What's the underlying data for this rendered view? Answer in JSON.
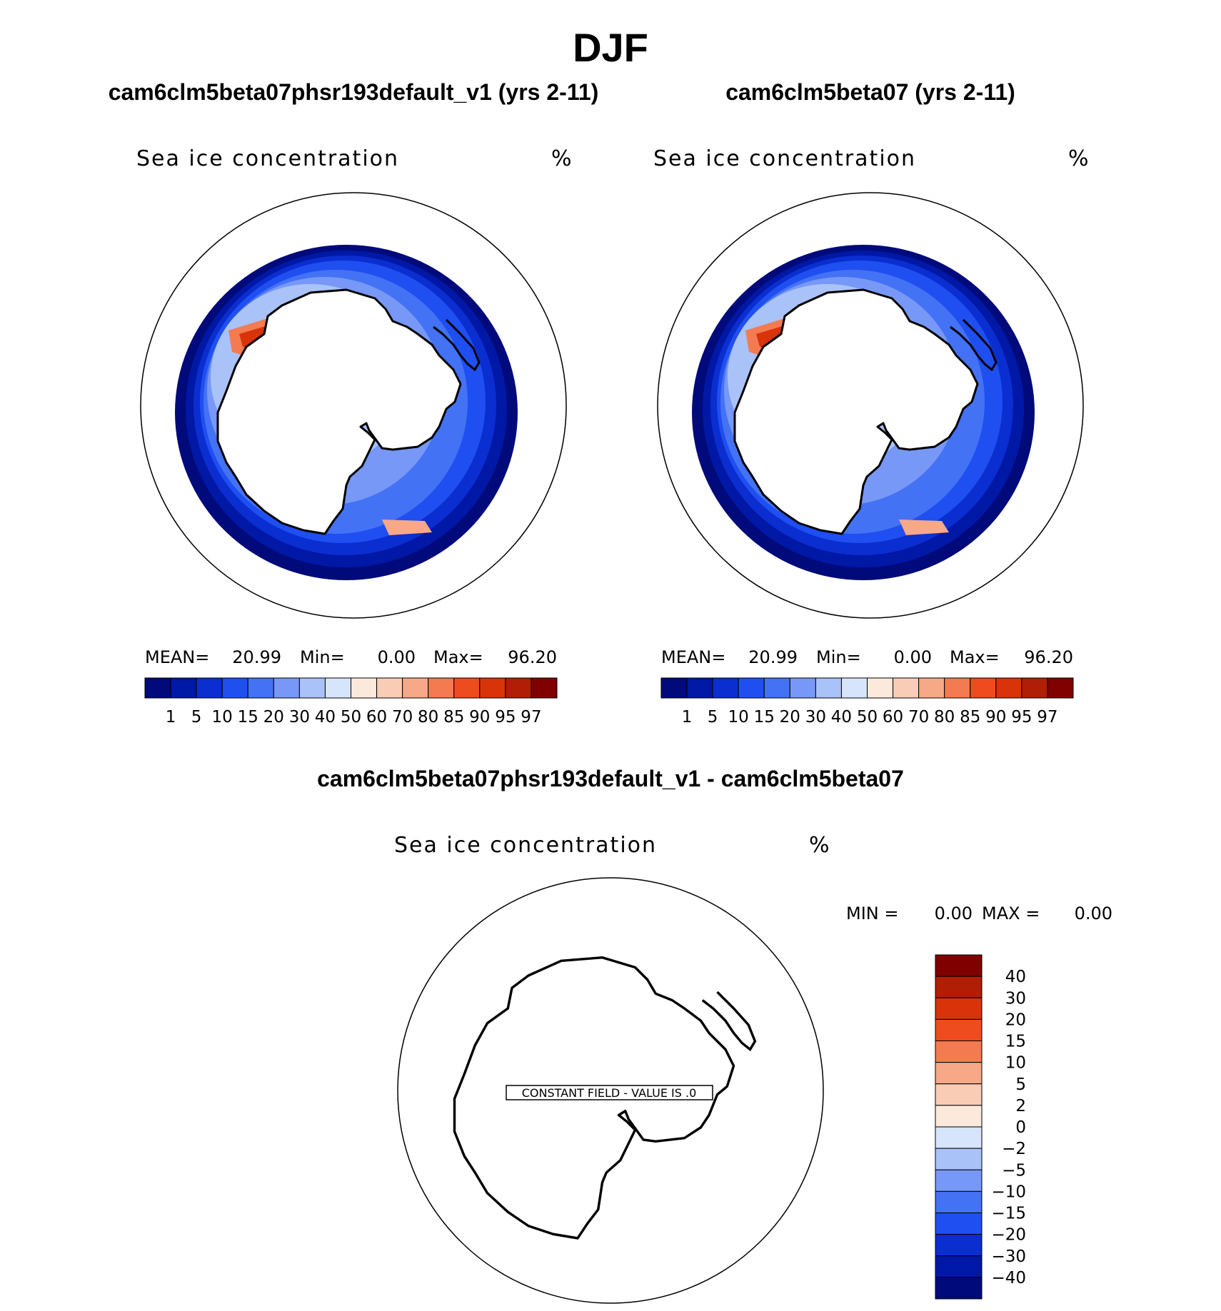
{
  "figure": {
    "season": "DJF",
    "panels": [
      {
        "id": "case",
        "title": "cam6clm5beta07phsr193default_v1 (yrs 2-11)",
        "variable": "Sea ice concentration",
        "units": "%",
        "mean_label": "MEAN=",
        "mean": "20.99",
        "min_label": "Min=",
        "min": "0.00",
        "max_label": "Max=",
        "max": "96.20"
      },
      {
        "id": "control",
        "title": "cam6clm5beta07 (yrs 2-11)",
        "variable": "Sea ice concentration",
        "units": "%",
        "mean_label": "MEAN=",
        "mean": "20.99",
        "min_label": "Min=",
        "min": "0.00",
        "max_label": "Max=",
        "max": "96.20"
      }
    ],
    "difference": {
      "title": "cam6clm5beta07phsr193default_v1 - cam6clm5beta07",
      "variable": "Sea ice concentration",
      "units": "%",
      "min_label": "MIN =",
      "min": "0.00",
      "max_label": "MAX =",
      "max": "0.00",
      "constant_field_label": "CONSTANT FIELD - VALUE IS .0"
    }
  },
  "chart_data": [
    {
      "type": "heatmap",
      "title": "cam6clm5beta07phsr193default_v1 (yrs 2-11)",
      "projection": "south polar stereographic",
      "variable": "Sea ice concentration",
      "units": "%",
      "stats": {
        "mean": 20.99,
        "min": 0.0,
        "max": 96.2
      },
      "levels": [
        1,
        5,
        10,
        15,
        20,
        30,
        40,
        50,
        60,
        70,
        80,
        85,
        90,
        95,
        97
      ],
      "colors": [
        "#000a7a",
        "#0018a6",
        "#0a2ed0",
        "#1f4ff0",
        "#4472f5",
        "#7898f7",
        "#a9c2f8",
        "#d6e5fb",
        "#fbe9dc",
        "#f9ccb6",
        "#f7a887",
        "#f47b51",
        "#ee4c1f",
        "#d9330a",
        "#b01f05",
        "#800000"
      ],
      "legend": "bottom"
    },
    {
      "type": "heatmap",
      "title": "cam6clm5beta07 (yrs 2-11)",
      "projection": "south polar stereographic",
      "variable": "Sea ice concentration",
      "units": "%",
      "stats": {
        "mean": 20.99,
        "min": 0.0,
        "max": 96.2
      },
      "levels": [
        1,
        5,
        10,
        15,
        20,
        30,
        40,
        50,
        60,
        70,
        80,
        85,
        90,
        95,
        97
      ],
      "colors": [
        "#000a7a",
        "#0018a6",
        "#0a2ed0",
        "#1f4ff0",
        "#4472f5",
        "#7898f7",
        "#a9c2f8",
        "#d6e5fb",
        "#fbe9dc",
        "#f9ccb6",
        "#f7a887",
        "#f47b51",
        "#ee4c1f",
        "#d9330a",
        "#b01f05",
        "#800000"
      ],
      "legend": "bottom"
    },
    {
      "type": "heatmap",
      "title": "cam6clm5beta07phsr193default_v1 - cam6clm5beta07",
      "projection": "south polar stereographic",
      "variable": "Sea ice concentration",
      "units": "%",
      "stats": {
        "min": 0.0,
        "max": 0.0
      },
      "constant_value": 0.0,
      "levels_labels": [
        "40",
        "30",
        "20",
        "15",
        "10",
        "5",
        "2",
        "0",
        "−2",
        "−5",
        "−10",
        "−15",
        "−20",
        "−30",
        "−40"
      ],
      "colors": [
        "#800000",
        "#b01f05",
        "#d9330a",
        "#ee4c1f",
        "#f47b51",
        "#f7a887",
        "#f9ccb6",
        "#fbe9dc",
        "#d6e5fb",
        "#a9c2f8",
        "#7898f7",
        "#4472f5",
        "#1f4ff0",
        "#0a2ed0",
        "#0018a6",
        "#000a7a"
      ],
      "legend": "right"
    }
  ]
}
